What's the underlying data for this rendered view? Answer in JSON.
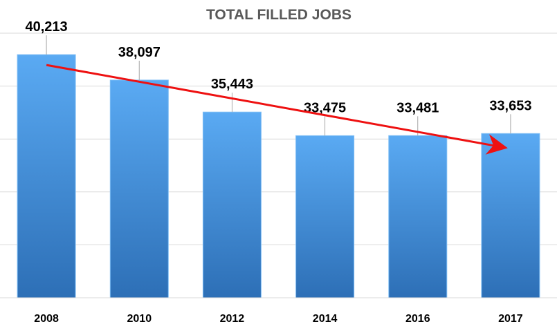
{
  "chart_data": {
    "type": "bar",
    "title": "TOTAL FILLED JOBS",
    "categories": [
      "2008",
      "2010",
      "2012",
      "2014",
      "2016",
      "2017"
    ],
    "values": [
      40213,
      38097,
      35443,
      33475,
      33481,
      33653
    ],
    "value_labels": [
      "40,213",
      "38,097",
      "35,443",
      "33,475",
      "33,481",
      "33,653"
    ],
    "xlabel": "",
    "ylabel": "",
    "ylim": [
      20000,
      42000
    ],
    "grid": true,
    "legend": "none",
    "trend_arrow": {
      "from_category": "2008",
      "to_category": "2017",
      "direction": "down"
    },
    "colors": {
      "bar_top": "#5aaaf3",
      "bar_bottom": "#2d6fb6",
      "trend_arrow": "#ee1111",
      "gridline": "#d9d9d9",
      "title": "#595959"
    }
  }
}
